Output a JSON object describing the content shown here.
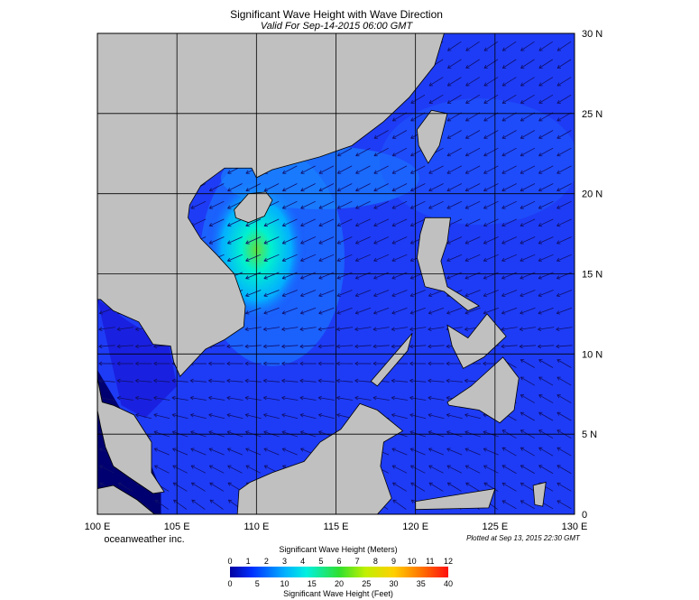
{
  "header": {
    "title": "Significant Wave Height with Wave Direction",
    "subtitle": "Valid For Sep-14-2015 06:00 GMT"
  },
  "map": {
    "lat_labels": [
      "30 N",
      "25 N",
      "20 N",
      "15 N",
      "10 N",
      "5 N",
      "0"
    ],
    "lon_labels": [
      "100 E",
      "105 E",
      "110 E",
      "115 E",
      "120 E",
      "125 E",
      "130 E"
    ]
  },
  "credit": "oceanweather inc.",
  "plot_time": "Plotted at Sep 13, 2015 22:30 GMT",
  "legend": {
    "meters": {
      "title": "Significant Wave Height (Meters)",
      "ticks": [
        "0",
        "1",
        "2",
        "3",
        "4",
        "5",
        "6",
        "7",
        "8",
        "9",
        "10",
        "11",
        "12"
      ]
    },
    "feet": {
      "title": "Significant Wave Height (Feet)",
      "ticks": [
        "0",
        "5",
        "10",
        "15",
        "20",
        "25",
        "30",
        "35",
        "40"
      ]
    }
  }
}
